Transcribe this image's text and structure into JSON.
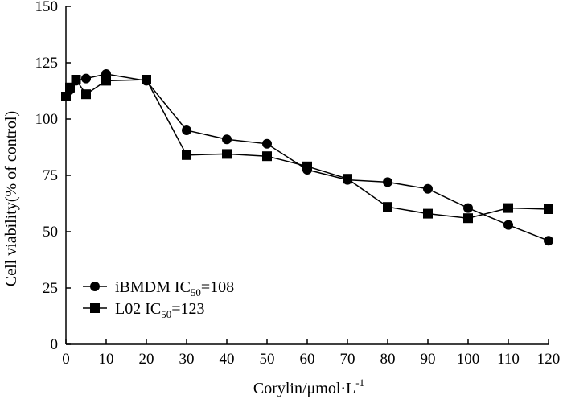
{
  "chart_data": {
    "type": "line",
    "title": "",
    "xlabel": "Corylin/μmol·L",
    "xlabel_sup": "-1",
    "ylabel": "Cell viability(% of control)",
    "xlim": [
      0,
      120
    ],
    "ylim": [
      0,
      150
    ],
    "xticks": [
      "0",
      "10",
      "20",
      "30",
      "40",
      "50",
      "60",
      "70",
      "80",
      "90",
      "100",
      "110",
      "120"
    ],
    "yticks": [
      "0",
      "25",
      "50",
      "75",
      "100",
      "125",
      "150"
    ],
    "grid": false,
    "legend_position": "bottom-left",
    "series": [
      {
        "name": "iBMDM IC50=108",
        "label_main": "iBMDM IC",
        "label_sub": "50",
        "label_tail": "=108",
        "marker": "circle",
        "x": [
          0,
          1,
          2.5,
          5,
          10,
          20,
          30,
          40,
          50,
          60,
          70,
          80,
          90,
          100,
          110,
          120
        ],
        "y": [
          110,
          113,
          117,
          118,
          120,
          117,
          95,
          91,
          89,
          77.5,
          73,
          72,
          69,
          60.5,
          53,
          46
        ]
      },
      {
        "name": "L02 IC50=123",
        "label_main": "L02 IC",
        "label_sub": "50",
        "label_tail": "=123",
        "marker": "square",
        "x": [
          0,
          1,
          2.5,
          5,
          10,
          20,
          30,
          40,
          50,
          60,
          70,
          80,
          90,
          100,
          110,
          120
        ],
        "y": [
          110,
          114,
          117.5,
          111,
          117,
          117.5,
          84,
          84.5,
          83.5,
          79,
          73.5,
          61,
          58,
          56,
          60.5,
          60
        ]
      }
    ]
  }
}
